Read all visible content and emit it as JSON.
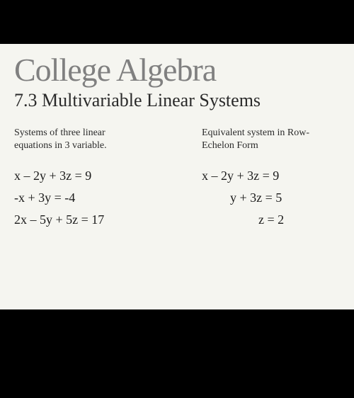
{
  "slide": {
    "main_title": "College Algebra",
    "sub_title": "7.3 Multivariable Linear Systems",
    "background_color": "#f5f5f0",
    "title_color": "#808080",
    "text_color": "#2a2a2a",
    "left": {
      "heading": "Systems of three linear equations in 3 variable.",
      "equations": [
        "x – 2y + 3z = 9",
        "-x + 3y        = -4",
        "2x – 5y + 5z = 17"
      ]
    },
    "right": {
      "heading": "Equivalent system in Row-Echelon Form",
      "equations": [
        "x – 2y + 3z = 9",
        "y + 3z = 5",
        "z = 2"
      ]
    }
  },
  "typography": {
    "main_title_fontsize": 46,
    "sub_title_fontsize": 26,
    "heading_fontsize": 14,
    "equation_fontsize": 18,
    "font_family": "Georgia, serif"
  }
}
